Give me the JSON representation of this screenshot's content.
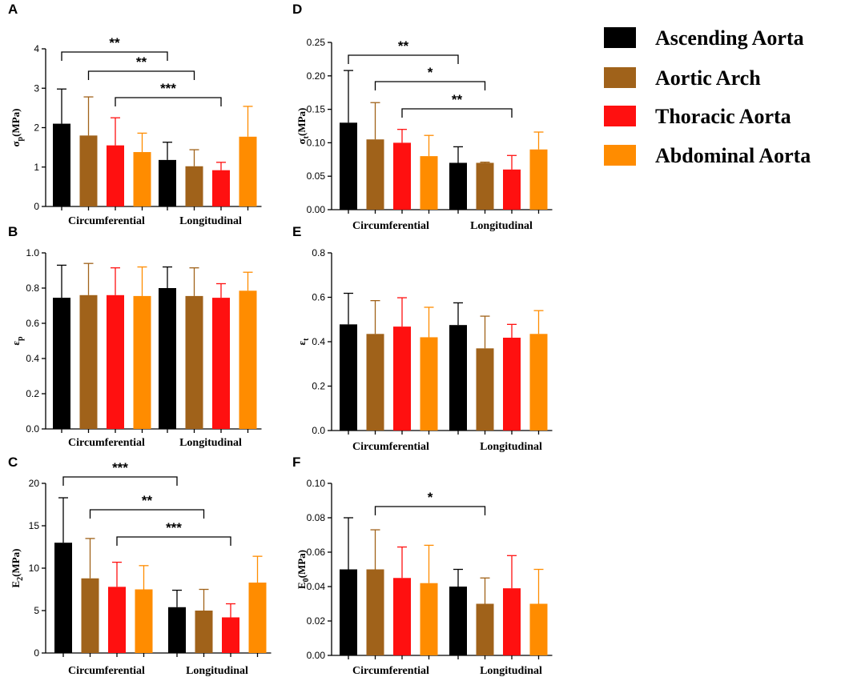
{
  "legend": [
    {
      "label": "Ascending Aorta",
      "color": "#000000"
    },
    {
      "label": "Aortic Arch",
      "color": "#a0621a"
    },
    {
      "label": "Thoracic Aorta",
      "color": "#ff1010"
    },
    {
      "label": "Abdominal Aorta",
      "color": "#ff8c00"
    }
  ],
  "chart_data": [
    {
      "type": "bar",
      "panel": "A",
      "ylabel": "σp(MPa)",
      "ylabel_main": "σ",
      "ylabel_sub": "p",
      "ylim": [
        0,
        4
      ],
      "yticks": [
        "0",
        "1",
        "2",
        "3",
        "4"
      ],
      "categories": [
        "Circumferential",
        "Longitudinal"
      ],
      "series": [
        {
          "name": "Ascending Aorta",
          "values": [
            2.1,
            1.18
          ],
          "errors": [
            0.88,
            0.45
          ]
        },
        {
          "name": "Aortic Arch",
          "values": [
            1.8,
            1.02
          ],
          "errors": [
            0.98,
            0.42
          ]
        },
        {
          "name": "Thoracic Aorta",
          "values": [
            1.55,
            0.92
          ],
          "errors": [
            0.7,
            0.2
          ]
        },
        {
          "name": "Abdominal Aorta",
          "values": [
            1.38,
            1.77
          ],
          "errors": [
            0.48,
            0.77
          ]
        }
      ],
      "significance": [
        {
          "label": "**",
          "from": [
            0,
            0
          ],
          "to": [
            1,
            0
          ]
        },
        {
          "label": "**",
          "from": [
            0,
            1
          ],
          "to": [
            1,
            1
          ]
        },
        {
          "label": "***",
          "from": [
            0,
            2
          ],
          "to": [
            1,
            2
          ]
        }
      ]
    },
    {
      "type": "bar",
      "panel": "B",
      "ylabel": "εp",
      "ylabel_main": "ε",
      "ylabel_sub": "p",
      "ylim": [
        0,
        1.0
      ],
      "yticks": [
        "0.0",
        "0.2",
        "0.4",
        "0.6",
        "0.8",
        "1.0"
      ],
      "categories": [
        "Circumferential",
        "Longitudinal"
      ],
      "series": [
        {
          "name": "Ascending Aorta",
          "values": [
            0.745,
            0.8
          ],
          "errors": [
            0.185,
            0.12
          ]
        },
        {
          "name": "Aortic Arch",
          "values": [
            0.76,
            0.755
          ],
          "errors": [
            0.18,
            0.16
          ]
        },
        {
          "name": "Thoracic Aorta",
          "values": [
            0.76,
            0.745
          ],
          "errors": [
            0.155,
            0.08
          ]
        },
        {
          "name": "Abdominal Aorta",
          "values": [
            0.755,
            0.785
          ],
          "errors": [
            0.165,
            0.105
          ]
        }
      ],
      "significance": []
    },
    {
      "type": "bar",
      "panel": "C",
      "ylabel": "E2(MPa)",
      "ylabel_main": "E",
      "ylabel_sub": "2",
      "ylim": [
        0,
        20
      ],
      "yticks": [
        "0",
        "5",
        "10",
        "15",
        "20"
      ],
      "categories": [
        "Circumferential",
        "Longitudinal"
      ],
      "series": [
        {
          "name": "Ascending Aorta",
          "values": [
            13.0,
            5.4
          ],
          "errors": [
            5.3,
            2.0
          ]
        },
        {
          "name": "Aortic Arch",
          "values": [
            8.8,
            5.0
          ],
          "errors": [
            4.7,
            2.5
          ]
        },
        {
          "name": "Thoracic Aorta",
          "values": [
            7.8,
            4.2
          ],
          "errors": [
            2.9,
            1.6
          ]
        },
        {
          "name": "Abdominal Aorta",
          "values": [
            7.5,
            8.3
          ],
          "errors": [
            2.8,
            3.1
          ]
        }
      ],
      "significance": [
        {
          "label": "***",
          "from": [
            0,
            0
          ],
          "to": [
            1,
            0
          ]
        },
        {
          "label": "**",
          "from": [
            0,
            1
          ],
          "to": [
            1,
            1
          ]
        },
        {
          "label": "***",
          "from": [
            0,
            2
          ],
          "to": [
            1,
            2
          ]
        }
      ]
    },
    {
      "type": "bar",
      "panel": "D",
      "ylabel": "σt(MPa)",
      "ylabel_main": "σ",
      "ylabel_sub": "t",
      "ylim": [
        0,
        0.25
      ],
      "yticks": [
        "0.00",
        "0.05",
        "0.10",
        "0.15",
        "0.20",
        "0.25"
      ],
      "categories": [
        "Circumferential",
        "Longitudinal"
      ],
      "series": [
        {
          "name": "Ascending Aorta",
          "values": [
            0.13,
            0.07
          ],
          "errors": [
            0.078,
            0.024
          ]
        },
        {
          "name": "Aortic Arch",
          "values": [
            0.105,
            0.07
          ],
          "errors": [
            0.055,
            0.001
          ]
        },
        {
          "name": "Thoracic Aorta",
          "values": [
            0.1,
            0.06
          ],
          "errors": [
            0.02,
            0.021
          ]
        },
        {
          "name": "Abdominal Aorta",
          "values": [
            0.08,
            0.09
          ],
          "errors": [
            0.031,
            0.026
          ]
        }
      ],
      "significance": [
        {
          "label": "**",
          "from": [
            0,
            0
          ],
          "to": [
            1,
            0
          ]
        },
        {
          "label": "*",
          "from": [
            0,
            1
          ],
          "to": [
            1,
            1
          ]
        },
        {
          "label": "**",
          "from": [
            0,
            2
          ],
          "to": [
            1,
            2
          ]
        }
      ]
    },
    {
      "type": "bar",
      "panel": "E",
      "ylabel": "εt",
      "ylabel_main": "ε",
      "ylabel_sub": "t",
      "ylim": [
        0,
        0.8
      ],
      "yticks": [
        "0.0",
        "0.2",
        "0.4",
        "0.6",
        "0.8"
      ],
      "categories": [
        "Circumferential",
        "Longitudinal"
      ],
      "series": [
        {
          "name": "Ascending Aorta",
          "values": [
            0.478,
            0.475
          ],
          "errors": [
            0.14,
            0.1
          ]
        },
        {
          "name": "Aortic Arch",
          "values": [
            0.435,
            0.37
          ],
          "errors": [
            0.15,
            0.145
          ]
        },
        {
          "name": "Thoracic Aorta",
          "values": [
            0.468,
            0.418
          ],
          "errors": [
            0.13,
            0.06
          ]
        },
        {
          "name": "Abdominal Aorta",
          "values": [
            0.42,
            0.435
          ],
          "errors": [
            0.135,
            0.105
          ]
        }
      ],
      "significance": []
    },
    {
      "type": "bar",
      "panel": "F",
      "ylabel": "E0(MPa)",
      "ylabel_main": "E",
      "ylabel_sub": "0",
      "ylim": [
        0,
        0.1
      ],
      "yticks": [
        "0.00",
        "0.02",
        "0.04",
        "0.06",
        "0.08",
        "0.10"
      ],
      "categories": [
        "Circumferential",
        "Longitudinal"
      ],
      "series": [
        {
          "name": "Ascending Aorta",
          "values": [
            0.05,
            0.04
          ],
          "errors": [
            0.03,
            0.01
          ]
        },
        {
          "name": "Aortic Arch",
          "values": [
            0.05,
            0.03
          ],
          "errors": [
            0.023,
            0.015
          ]
        },
        {
          "name": "Thoracic Aorta",
          "values": [
            0.045,
            0.039
          ],
          "errors": [
            0.018,
            0.019
          ]
        },
        {
          "name": "Abdominal Aorta",
          "values": [
            0.042,
            0.03
          ],
          "errors": [
            0.022,
            0.02
          ]
        }
      ],
      "significance": [
        {
          "label": "*",
          "from": [
            0,
            1
          ],
          "to": [
            1,
            1
          ]
        }
      ]
    }
  ]
}
